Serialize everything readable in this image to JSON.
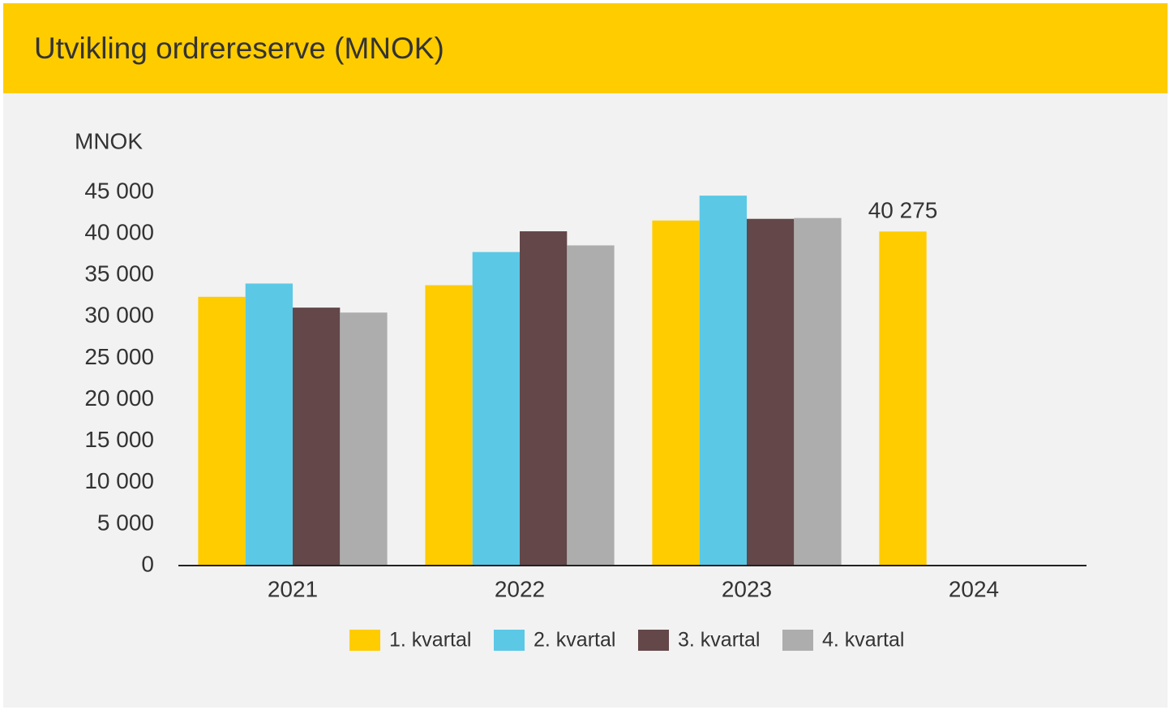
{
  "chart_data": {
    "type": "bar",
    "title": "Utvikling ordrereserve (MNOK)",
    "y_axis_label": "MNOK",
    "categories": [
      "2021",
      "2022",
      "2023",
      "2024"
    ],
    "series": [
      {
        "name": "1. kvartal",
        "color": "#ffcc00",
        "values": [
          32400,
          33800,
          41600,
          40275
        ],
        "value_labels": [
          null,
          null,
          null,
          "40 275"
        ]
      },
      {
        "name": "2. kvartal",
        "color": "#5bc8e6",
        "values": [
          34000,
          37800,
          44600,
          null
        ]
      },
      {
        "name": "3. kvartal",
        "color": "#634749",
        "values": [
          31100,
          40300,
          41800,
          null
        ]
      },
      {
        "name": "4. kvartal",
        "color": "#adadad",
        "values": [
          30500,
          38600,
          41900,
          null
        ]
      }
    ],
    "ylim": [
      0,
      45000
    ],
    "yticks": [
      0,
      {
        "value": 5000,
        "label": "5 000"
      },
      {
        "value": 10000,
        "label": "10 000"
      },
      {
        "value": 15000,
        "label": "15 000"
      },
      {
        "value": 20000,
        "label": "20 000"
      },
      {
        "value": 25000,
        "label": "25 000"
      },
      {
        "value": 30000,
        "label": "30 000"
      },
      {
        "value": 35000,
        "label": "35 000"
      },
      {
        "value": 40000,
        "label": "40 000"
      },
      {
        "value": 45000,
        "label": "45 000"
      }
    ],
    "grid": false,
    "legend": "bottom"
  }
}
